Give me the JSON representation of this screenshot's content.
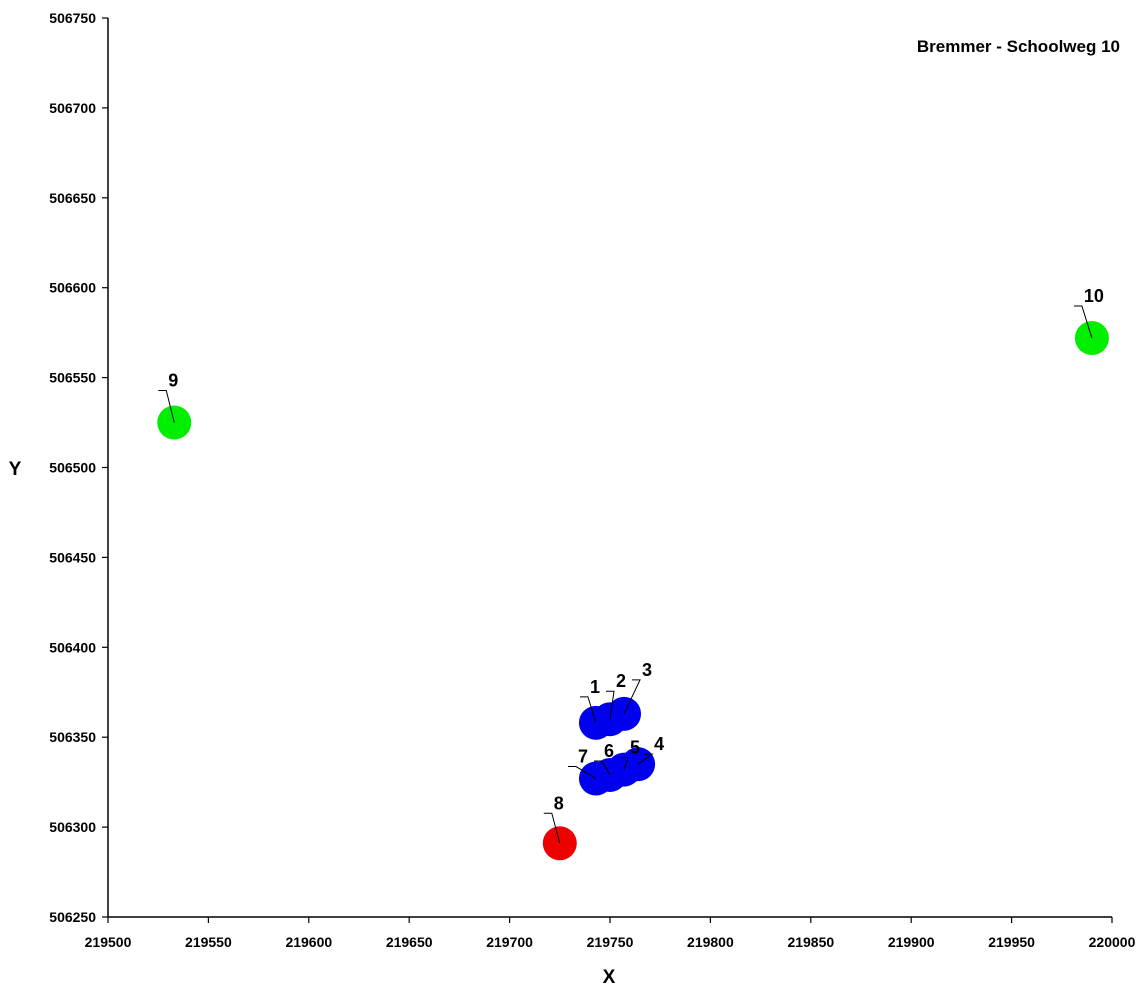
{
  "chart_data": {
    "type": "scatter",
    "title": "Bremmer - Schoolweg 10",
    "xlabel": "X",
    "ylabel": "Y",
    "xlim": [
      219500,
      220000
    ],
    "ylim": [
      506250,
      506750
    ],
    "x_ticks": [
      "219500",
      "219550",
      "219600",
      "219650",
      "219700",
      "219750",
      "219800",
      "219850",
      "219900",
      "219950",
      "220000"
    ],
    "y_ticks": [
      "506250",
      "506300",
      "506350",
      "506400",
      "506450",
      "506500",
      "506550",
      "506600",
      "506650",
      "506700",
      "506750"
    ],
    "grid": false,
    "points": [
      {
        "label": "1",
        "x": 219743,
        "y": 506358,
        "color": "#0000ee"
      },
      {
        "label": "2",
        "x": 219750,
        "y": 506360,
        "color": "#0000ee"
      },
      {
        "label": "3",
        "x": 219757,
        "y": 506363,
        "color": "#0000ee"
      },
      {
        "label": "4",
        "x": 219764,
        "y": 506335,
        "color": "#0000ee"
      },
      {
        "label": "5",
        "x": 219757,
        "y": 506332,
        "color": "#0000ee"
      },
      {
        "label": "6",
        "x": 219750,
        "y": 506329,
        "color": "#0000ee"
      },
      {
        "label": "7",
        "x": 219743,
        "y": 506327,
        "color": "#0000ee"
      },
      {
        "label": "8",
        "x": 219725,
        "y": 506291,
        "color": "#ee0000"
      },
      {
        "label": "9",
        "x": 219533,
        "y": 506525,
        "color": "#00ee00"
      },
      {
        "label": "10",
        "x": 219990,
        "y": 506572,
        "color": "#00ee00"
      }
    ]
  }
}
